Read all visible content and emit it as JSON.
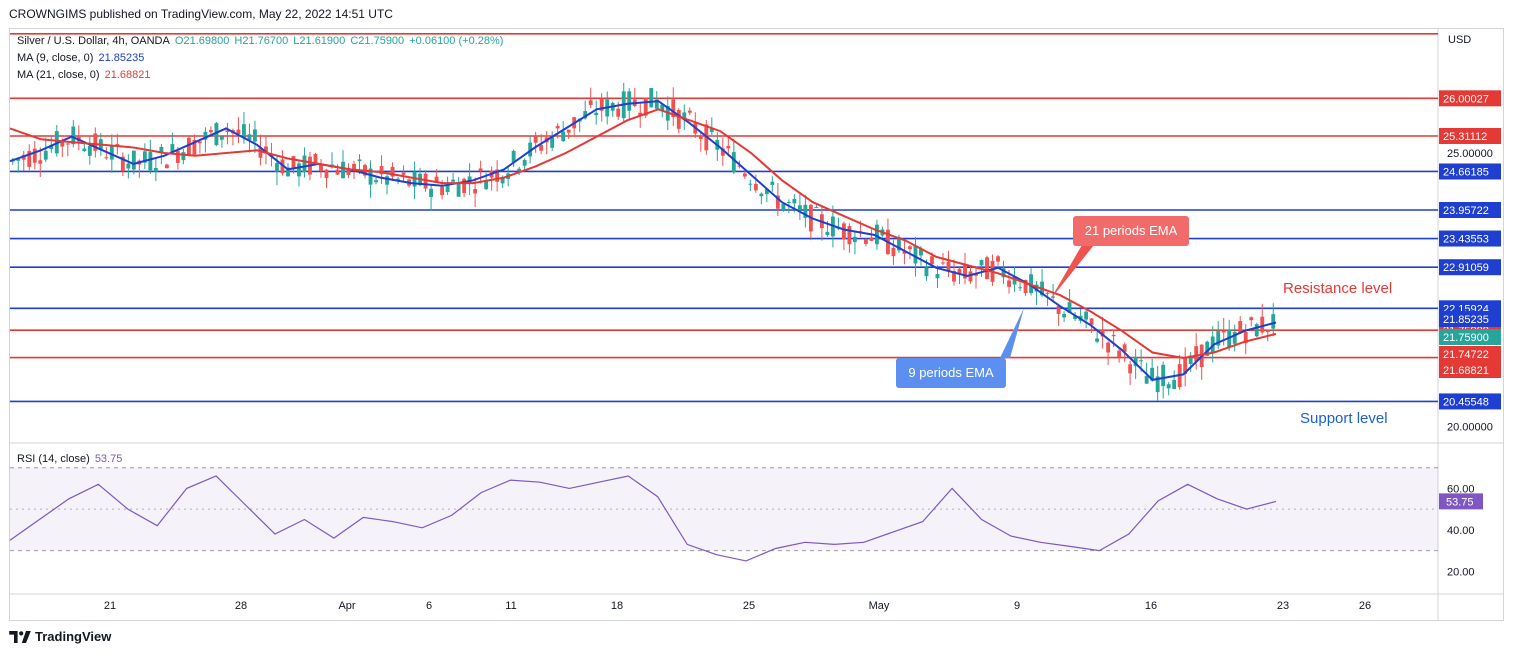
{
  "header": {
    "published": "CROWNGIMS published on TradingView.com, May 22, 2022 14:51 UTC"
  },
  "currency": "USD",
  "symbol_line": {
    "name": "Silver / U.S. Dollar, 4h, OANDA",
    "o": "O21.69800",
    "h": "H21.76700",
    "l": "L21.61900",
    "c": "C21.75900",
    "chg": "+0.06100 (+0.28%)"
  },
  "ma9": {
    "label": "MA (9, close, 0)",
    "value": "21.85235",
    "color": "#1e3fd0"
  },
  "ma21": {
    "label": "MA (21, close, 0)",
    "value": "21.68821",
    "color": "#e53935"
  },
  "rsi": {
    "label": "RSI (14, close)",
    "value": "53.75",
    "color": "#7e57c2"
  },
  "annotations": {
    "ema21": "21 periods EMA",
    "ema9": "9 periods EMA",
    "resistance": "Resistance level",
    "support": "Support level"
  },
  "footer": {
    "brand": "TradingView"
  },
  "colors": {
    "up": "#26a69a",
    "down": "#ef5350",
    "red_line": "#e53935",
    "blue_line": "#1e3fd0",
    "rsi": "#7e57c2"
  },
  "chart_data": {
    "type": "line",
    "title": "Silver / U.S. Dollar, 4h, OANDA",
    "x_ticks": [
      "21",
      "28",
      "Apr",
      "6",
      "11",
      "18",
      "25",
      "May",
      "9",
      "16",
      "23",
      "26"
    ],
    "y_ticks": [
      "25.00000",
      "20.00000"
    ],
    "ylim": [
      19.75,
      27.25
    ],
    "levels": [
      {
        "value": 27.18,
        "label": "",
        "color": "red"
      },
      {
        "value": 26.00027,
        "label": "26.00027",
        "color": "red"
      },
      {
        "value": 25.31112,
        "label": "25.31112",
        "color": "red"
      },
      {
        "value": 24.66185,
        "label": "24.66185",
        "color": "blue"
      },
      {
        "value": 23.95722,
        "label": "23.95722",
        "color": "blue"
      },
      {
        "value": 23.43553,
        "label": "23.43553",
        "color": "blue"
      },
      {
        "value": 22.91059,
        "label": "22.91059",
        "color": "blue"
      },
      {
        "value": 22.15924,
        "label": "22.15924",
        "color": "blue"
      },
      {
        "value": 21.759,
        "label": "21.75900",
        "color": "red"
      },
      {
        "value": 21.25757,
        "label": "21.25757",
        "color": "red"
      },
      {
        "value": 20.45548,
        "label": "20.45548",
        "color": "blue"
      }
    ],
    "price_tags": [
      {
        "value": 21.85235,
        "label": "21.85235",
        "bg": "#1e3fd0"
      },
      {
        "value": 21.759,
        "label": "21.75900",
        "bg": "#26a69a"
      },
      {
        "value": 21.74722,
        "label": "21.74722",
        "bg": "#e53935"
      },
      {
        "value": 21.68821,
        "label": "21.68821",
        "bg": "#e53935"
      }
    ],
    "series": [
      {
        "name": "MA (9, close, 0)",
        "color": "#1e3fd0",
        "values": [
          24.85,
          25.05,
          25.3,
          25.05,
          24.8,
          24.95,
          25.2,
          25.45,
          25.15,
          24.7,
          24.8,
          24.7,
          24.55,
          24.45,
          24.4,
          24.5,
          24.7,
          25.1,
          25.45,
          25.8,
          25.9,
          25.95,
          25.55,
          25.1,
          24.6,
          24.1,
          23.8,
          23.6,
          23.5,
          23.2,
          22.9,
          22.75,
          22.9,
          22.6,
          22.2,
          21.85,
          21.4,
          20.85,
          20.95,
          21.5,
          21.75,
          21.9
        ]
      },
      {
        "name": "MA (21, close, 0)",
        "color": "#e53935",
        "values": [
          25.45,
          25.25,
          25.2,
          25.15,
          25.1,
          25.0,
          24.95,
          25.0,
          25.05,
          24.9,
          24.8,
          24.7,
          24.65,
          24.55,
          24.45,
          24.45,
          24.55,
          24.75,
          25.0,
          25.3,
          25.6,
          25.8,
          25.6,
          25.4,
          25.0,
          24.5,
          24.1,
          23.85,
          23.6,
          23.4,
          23.1,
          22.95,
          22.8,
          22.6,
          22.4,
          22.1,
          21.75,
          21.35,
          21.25,
          21.35,
          21.55,
          21.69
        ]
      }
    ],
    "rsi": {
      "name": "RSI (14, close)",
      "ylim": [
        10,
        80
      ],
      "y_ticks": [
        "60.00",
        "40.00",
        "20.00"
      ],
      "band": [
        30,
        70
      ],
      "values": [
        35,
        45,
        55,
        62,
        50,
        42,
        60,
        66,
        52,
        38,
        45,
        36,
        46,
        44,
        41,
        47,
        58,
        64,
        63,
        60,
        63,
        66,
        56,
        33,
        28,
        25,
        31,
        34,
        33,
        34,
        39,
        44,
        60,
        45,
        37,
        34,
        32,
        30,
        38,
        54,
        62,
        55,
        50,
        53.75
      ],
      "last_label": "53.75"
    }
  }
}
